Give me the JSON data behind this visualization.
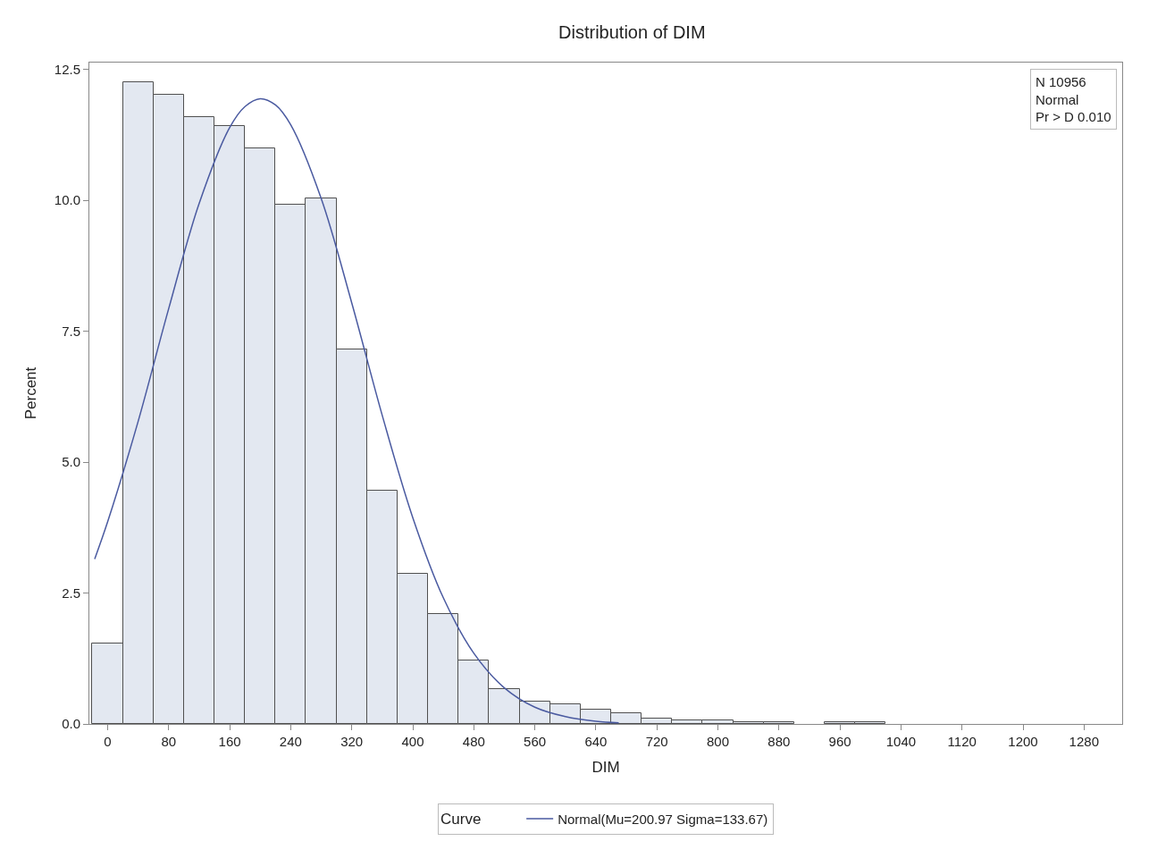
{
  "chart_data": {
    "type": "histogram",
    "title": "Distribution of DIM",
    "xlabel": "DIM",
    "ylabel": "Percent",
    "bins": [
      -20,
      20,
      60,
      100,
      140,
      180,
      220,
      260,
      300,
      340,
      380,
      420,
      460,
      500,
      540,
      580,
      620,
      660,
      700,
      740,
      780,
      820,
      860,
      900,
      940,
      980,
      1020
    ],
    "values": [
      1.53,
      12.25,
      12.01,
      11.59,
      11.42,
      11.0,
      9.92,
      10.04,
      7.15,
      4.45,
      2.87,
      2.1,
      1.22,
      0.66,
      0.42,
      0.38,
      0.27,
      0.21,
      0.1,
      0.07,
      0.06,
      0.03,
      0.03,
      0,
      0.03,
      0.03
    ],
    "color": "#e3e8f1",
    "series": [
      {
        "type": "line",
        "name": "Normal(Mu=200.97 Sigma=133.67)",
        "color": "#4a5aa0",
        "x": [
          -17,
          0,
          40,
          80,
          120,
          160,
          180,
          200,
          220,
          240,
          280,
          320,
          360,
          400,
          440,
          480,
          520,
          560,
          600,
          640,
          670
        ],
        "values": [
          3.15,
          3.86,
          5.78,
          7.93,
          9.94,
          11.39,
          11.79,
          11.94,
          11.82,
          11.44,
          10.03,
          8.04,
          5.89,
          3.94,
          2.41,
          1.35,
          0.69,
          0.32,
          0.14,
          0.05,
          0.02
        ]
      }
    ],
    "legend_title": "Curve",
    "legend": "bottom",
    "annotations": [
      "N 10956",
      "Normal",
      "Pr > D 0.010"
    ],
    "xlim": [
      -24,
      1330
    ],
    "xticks": [
      0,
      80,
      160,
      240,
      320,
      400,
      480,
      560,
      640,
      720,
      800,
      880,
      960,
      1040,
      1120,
      1200,
      1280
    ],
    "ylim": [
      0,
      12.63
    ],
    "yticks": [
      {
        "value": 0,
        "label": "0.0"
      },
      {
        "value": 2.5,
        "label": "2.5"
      },
      {
        "value": 5,
        "label": "5.0"
      },
      {
        "value": 7.5,
        "label": "7.5"
      },
      {
        "value": 10,
        "label": "10.0"
      },
      {
        "value": 12.5,
        "label": "12.5"
      }
    ]
  }
}
